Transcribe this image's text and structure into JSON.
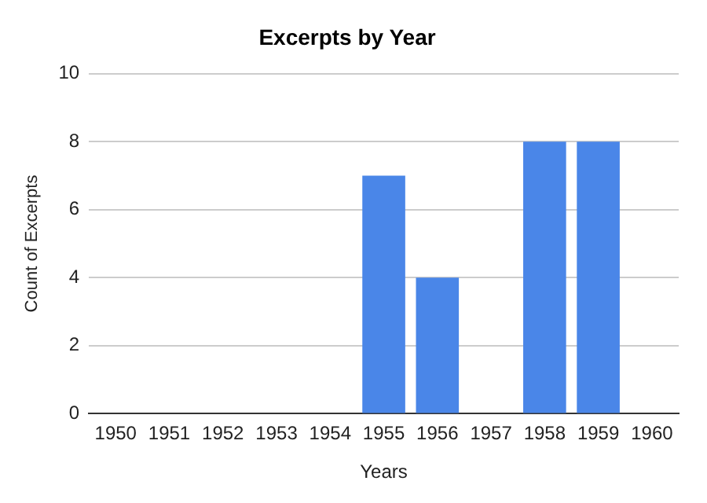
{
  "chart_data": {
    "type": "bar",
    "title": "Excerpts by Year",
    "xlabel": "Years",
    "ylabel": "Count of Excerpts",
    "categories": [
      "1950",
      "1951",
      "1952",
      "1953",
      "1954",
      "1955",
      "1956",
      "1957",
      "1958",
      "1959",
      "1960"
    ],
    "values": [
      0,
      0,
      0,
      0,
      0,
      7,
      4,
      0,
      8,
      8,
      0
    ],
    "color": "#4a86e8",
    "ylim": [
      0,
      10
    ],
    "yticks": [
      0,
      2,
      4,
      6,
      8,
      10
    ],
    "grid": "y"
  }
}
